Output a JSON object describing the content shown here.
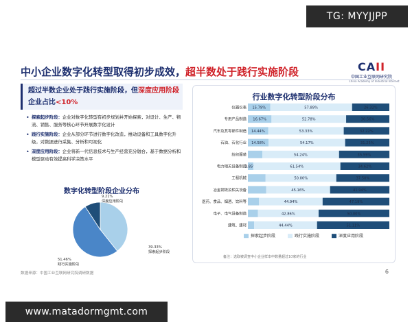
{
  "badge_text": "TG: MYYJJPP",
  "url_text": "www.matadormgmt.com",
  "slide": {
    "title_main": "中小企业数字化转型取得初步成效，",
    "title_highlight": "超半数处于践行实施阶段",
    "logo_mark_a": "CA",
    "logo_mark_b": "II",
    "logo_cn": "中国工业互联网研究院",
    "logo_en": "China Academy of Industrial Internet",
    "callout_a": "超过半数企业处于践行实施阶段，但",
    "callout_hl1": "深度应用阶段",
    "callout_b": "企业占比",
    "callout_hl2": "<10%",
    "bullets": [
      {
        "term": "探索起步阶段：",
        "text": "企业对数字化转型有初步规划并开始探索，对设计、生产、物流、销售、服务等核心环节开展数字化设计"
      },
      {
        "term": "践行实施阶段：",
        "text": "企业从部分环节进行数字化改造，推动设备和工具数字化升级，对数据进行采集、分析和可视化"
      },
      {
        "term": "深度应用阶段：",
        "text": "企业将新一代信息技术与生产经营充分融合，基于数据分析和模型驱动有效提高科学决策水平"
      }
    ],
    "source": "数据来源：中国工业互联网研究院调研数据",
    "page": "6",
    "footnote": "备注：选取被调查中小企业样本中数量超过10家的行业"
  },
  "pie": {
    "title": "数字化转型阶段企业分布",
    "colors": [
      "#a9d0ea",
      "#4a86c8",
      "#1f4e79"
    ]
  },
  "bar_chart": {
    "title": "行业数字化转型阶段分布",
    "colors": [
      "#a9d0ea",
      "#d9ecf8",
      "#1f4e79"
    ]
  },
  "chart_data": [
    {
      "type": "pie",
      "title": "数字化转型阶段企业分布",
      "slices": [
        {
          "label": "探索起步阶段",
          "value": 39.33,
          "text": "39.33%"
        },
        {
          "label": "践行实施阶段",
          "value": 51.46,
          "text": "51.46%"
        },
        {
          "label": "深度应用阶段",
          "value": 9.21,
          "text": "9.21%"
        }
      ]
    },
    {
      "type": "bar",
      "stacked": true,
      "orientation": "horizontal",
      "title": "行业数字化转型阶段分布",
      "categories": [
        "仪器仪表",
        "专用产品制造",
        "汽车及其零部件制造",
        "石油、石化行业",
        "纺织服装",
        "电力相关设备制造",
        "工程机械",
        "冶金钢铁及相关设备",
        "医药、食品、烟酒、饮料等",
        "电子、电气设备制造",
        "建筑、建材"
      ],
      "series": [
        {
          "name": "探索起步阶段",
          "values": [
            15.79,
            16.67,
            14.44,
            14.58,
            10.22,
            3.85,
            12.5,
            12.95,
            7.89,
            7.14,
            4.45
          ],
          "labels": [
            "15.79%",
            "16.67%",
            "14.44%",
            "14.58%",
            "",
            "3.85%",
            "",
            "",
            "",
            "",
            ""
          ]
        },
        {
          "name": "践行实施阶段",
          "values": [
            57.89,
            52.78,
            53.33,
            54.17,
            54.24,
            61.54,
            50.0,
            45.16,
            44.94,
            42.86,
            44.44
          ],
          "labels": [
            "57.89%",
            "52.78%",
            "53.33%",
            "54.17%",
            "54.24%",
            "61.54%",
            "50.00%",
            "45.16%",
            "44.94%",
            "42.86%",
            "44.44%"
          ]
        },
        {
          "name": "深度应用阶段",
          "values": [
            26.32,
            30.56,
            32.22,
            31.25,
            35.59,
            34.62,
            37.5,
            41.94,
            47.19,
            50.0,
            51.11
          ],
          "labels": [
            "26.32%",
            "30.56%",
            "32.22%",
            "31.25%",
            "35.59%",
            "34.62%",
            "37.50%",
            "41.94%",
            "47.19%",
            "50.00%",
            "51.11%"
          ]
        }
      ],
      "legend": [
        "探索起步阶段",
        "践行实施阶段",
        "深度应用阶段"
      ],
      "legend_position": "bottom",
      "xlim": [
        0,
        100
      ]
    }
  ]
}
